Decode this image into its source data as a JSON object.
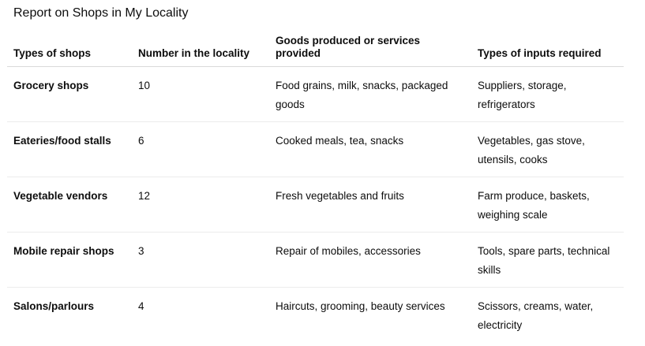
{
  "title": "Report on Shops in My Locality",
  "columns": [
    "Types of shops",
    "Number in the locality",
    "Goods produced or services provided",
    "Types of inputs required"
  ],
  "rows": [
    [
      "Grocery shops",
      "10",
      "Food grains, milk, snacks, packaged goods",
      "Suppliers, storage, refrigerators"
    ],
    [
      "Eateries/food stalls",
      "6",
      "Cooked meals, tea, snacks",
      "Vegetables, gas stove, utensils, cooks"
    ],
    [
      "Vegetable vendors",
      "12",
      "Fresh vegetables and fruits",
      "Farm produce, baskets, weighing scale"
    ],
    [
      "Mobile repair shops",
      "3",
      "Repair of mobiles, accessories",
      "Tools, spare parts, technical skills"
    ],
    [
      "Salons/parlours",
      "4",
      "Haircuts, grooming, beauty services",
      "Scissors, creams, water, electricity"
    ]
  ]
}
